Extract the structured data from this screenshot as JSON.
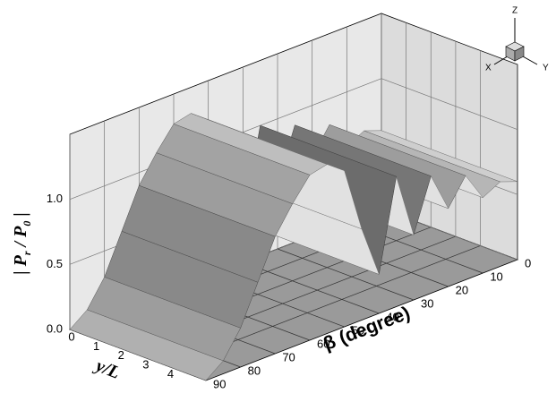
{
  "chart_data": {
    "type": "surface3d",
    "z_label_parts": [
      "| P",
      "r",
      " / P",
      "0",
      " |"
    ],
    "x_label": "β (degree)",
    "y_label": "y/L",
    "x": [
      0,
      5,
      10,
      15,
      20,
      25,
      30,
      35,
      40,
      45,
      50,
      55,
      60,
      65,
      70,
      75,
      80,
      85,
      90
    ],
    "values": [
      0.6,
      0.65,
      0.58,
      0.8,
      0.6,
      0.9,
      0.5,
      1.0,
      0.3,
      0.7,
      1.2,
      1.3,
      1.27,
      1.1,
      0.9,
      0.6,
      0.3,
      0.1,
      0
    ],
    "color": "#c4c4c4",
    "xlim": [
      0,
      90
    ],
    "xticks": [
      0,
      10,
      20,
      30,
      40,
      50,
      60,
      70,
      80,
      90
    ],
    "ylim": [
      0,
      5.5
    ],
    "yticks": [
      0,
      1,
      2,
      3,
      4
    ],
    "zlim": [
      0,
      1.5
    ],
    "zticks": [
      {
        "value": 0,
        "label": "0.0"
      },
      0.5,
      {
        "value": 1,
        "label": "1.0"
      }
    ],
    "grid": true,
    "orientation": {
      "x": "X",
      "y": "Y",
      "z": "Z"
    }
  }
}
